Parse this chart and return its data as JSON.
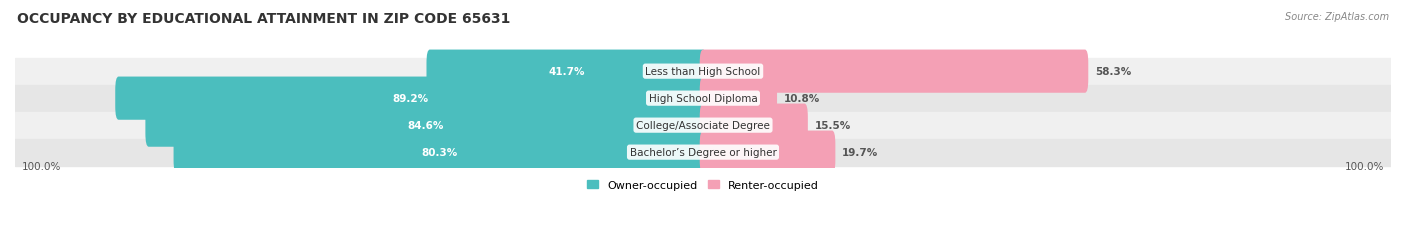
{
  "title": "OCCUPANCY BY EDUCATIONAL ATTAINMENT IN ZIP CODE 65631",
  "source": "Source: ZipAtlas.com",
  "categories": [
    "Less than High School",
    "High School Diploma",
    "College/Associate Degree",
    "Bachelor’s Degree or higher"
  ],
  "owner_pct": [
    41.7,
    89.2,
    84.6,
    80.3
  ],
  "renter_pct": [
    58.3,
    10.8,
    15.5,
    19.7
  ],
  "owner_color": "#4BBEBE",
  "renter_color": "#F4A0B5",
  "row_bg_colors": [
    "#F0F0F0",
    "#E6E6E6"
  ],
  "label_color_owner": "#FFFFFF",
  "label_color_renter": "#555555",
  "label_fontsize": 7.5,
  "category_fontsize": 7.5,
  "title_fontsize": 10,
  "axis_label_fontsize": 7.5,
  "legend_fontsize": 8,
  "fig_bg_color": "#FFFFFF",
  "x_left_label": "100.0%",
  "x_right_label": "100.0%"
}
